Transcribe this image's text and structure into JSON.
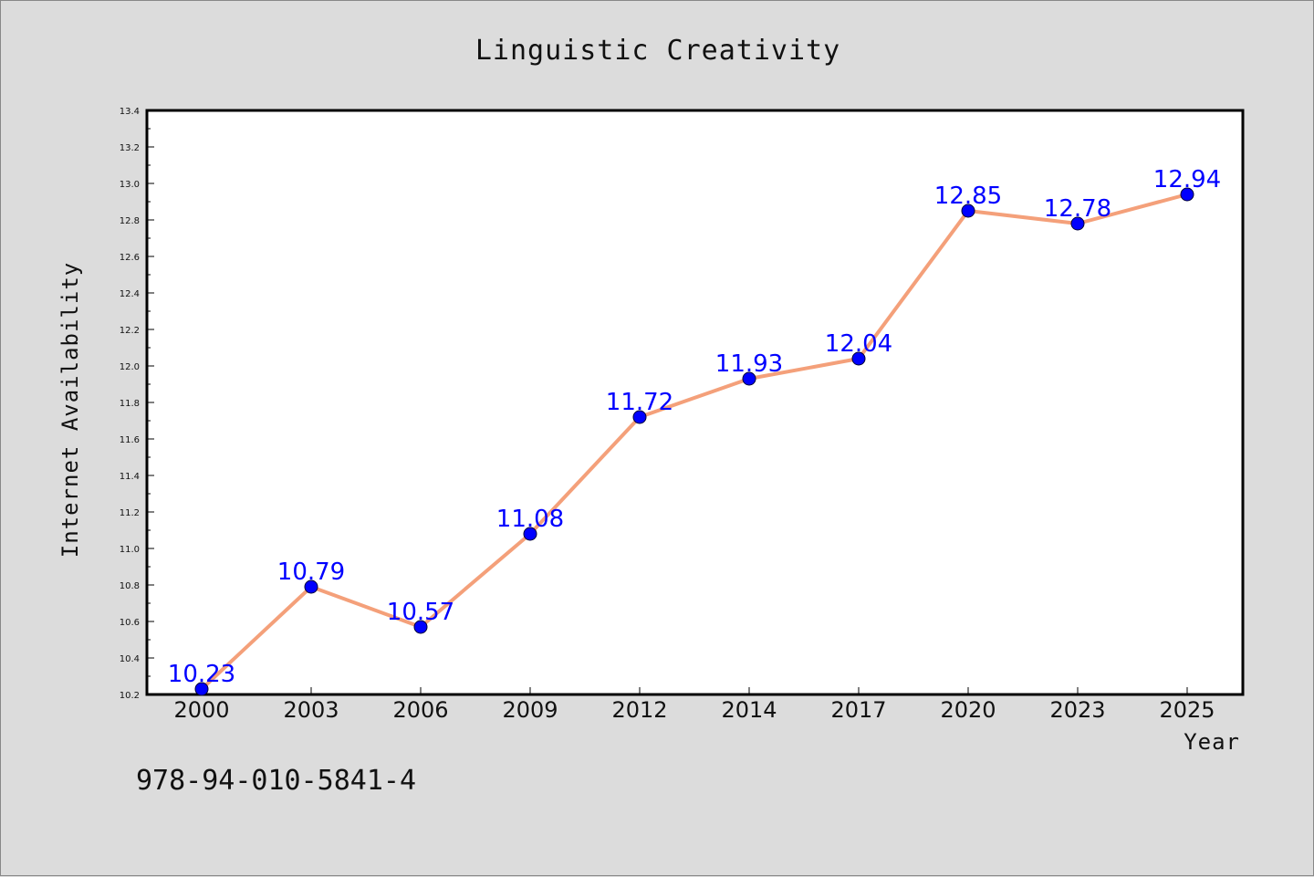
{
  "chart_data": {
    "type": "line",
    "title": "Linguistic Creativity",
    "xlabel": "Year",
    "ylabel": "Internet Availability",
    "categories": [
      "2000",
      "2003",
      "2006",
      "2009",
      "2012",
      "2014",
      "2017",
      "2020",
      "2023",
      "2025"
    ],
    "series": [
      {
        "values": [
          10.23,
          10.79,
          10.57,
          11.08,
          11.72,
          11.93,
          12.04,
          12.85,
          12.78,
          12.94
        ],
        "data_labels": [
          "10.23",
          "10.79",
          "10.57",
          "11.08",
          "11.72",
          "11.93",
          "12.04",
          "12.85",
          "12.78",
          "12.94"
        ],
        "line_color": "#f4a07a",
        "marker_color": "#0000ff",
        "label_color": "#0000ff"
      }
    ],
    "ylim": [
      10.2,
      13.4
    ],
    "yticks": [
      "10.2",
      "10.4",
      "10.6",
      "10.8",
      "11.0",
      "11.2",
      "11.4",
      "11.6",
      "11.8",
      "12.0",
      "12.2",
      "12.4",
      "12.6",
      "12.8",
      "13.0",
      "13.2",
      "13.4"
    ],
    "grid": false,
    "legend": "none"
  },
  "footer": {
    "isbn": "978-94-010-5841-4"
  },
  "colors": {
    "background": "#dcdcdc",
    "plot_background": "#ffffff",
    "axis": "#000000"
  }
}
